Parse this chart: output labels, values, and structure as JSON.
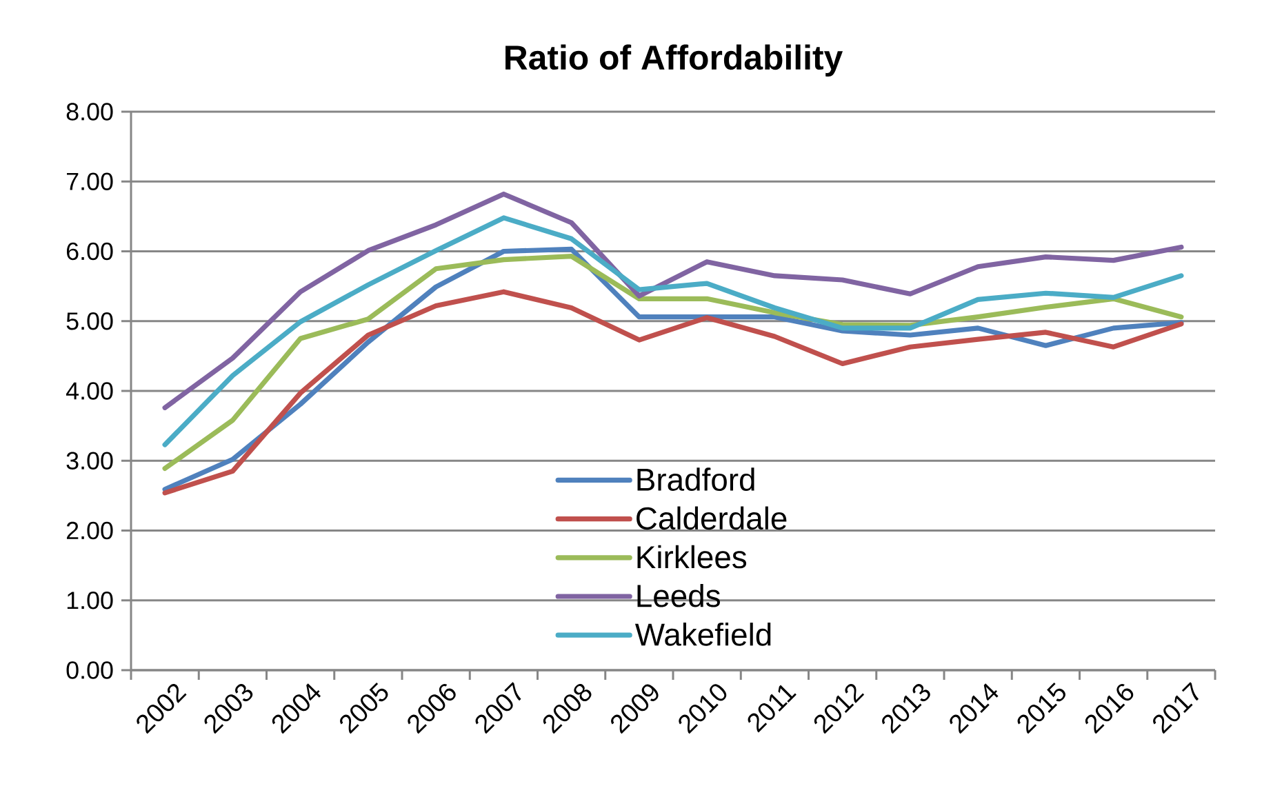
{
  "chart_data": {
    "type": "line",
    "title": "Ratio of Affordability",
    "categories": [
      "2002",
      "2003",
      "2004",
      "2005",
      "2006",
      "2007",
      "2008",
      "2009",
      "2010",
      "2011",
      "2012",
      "2013",
      "2014",
      "2015",
      "2016",
      "2017"
    ],
    "series": [
      {
        "name": "Bradford",
        "color": "#4f81bd",
        "values": [
          2.59,
          3.02,
          3.81,
          4.7,
          5.49,
          6.0,
          6.03,
          5.06,
          5.06,
          5.06,
          4.86,
          4.8,
          4.9,
          4.65,
          4.9,
          4.98
        ]
      },
      {
        "name": "Calderdale",
        "color": "#c0504d",
        "values": [
          2.54,
          2.85,
          3.97,
          4.8,
          5.22,
          5.42,
          5.19,
          4.73,
          5.05,
          4.78,
          4.39,
          4.63,
          4.74,
          4.84,
          4.63,
          4.96
        ]
      },
      {
        "name": "Kirklees",
        "color": "#9bbb59",
        "values": [
          2.89,
          3.58,
          4.75,
          5.03,
          5.75,
          5.88,
          5.93,
          5.32,
          5.32,
          5.12,
          4.95,
          4.94,
          5.06,
          5.2,
          5.32,
          5.06
        ]
      },
      {
        "name": "Leeds",
        "color": "#8064a2",
        "values": [
          3.76,
          4.47,
          5.42,
          6.01,
          6.38,
          6.82,
          6.41,
          5.36,
          5.85,
          5.65,
          5.59,
          5.39,
          5.78,
          5.92,
          5.87,
          6.06
        ]
      },
      {
        "name": "Wakefield",
        "color": "#4bacc6",
        "values": [
          3.23,
          4.22,
          4.99,
          5.52,
          6.01,
          6.48,
          6.18,
          5.45,
          5.54,
          5.19,
          4.9,
          4.9,
          5.31,
          5.4,
          5.34,
          5.65
        ]
      }
    ],
    "ylim": [
      0,
      8
    ],
    "yticks": [
      {
        "value": 0,
        "label": "0.00"
      },
      {
        "value": 1,
        "label": "1.00"
      },
      {
        "value": 2,
        "label": "2.00"
      },
      {
        "value": 3,
        "label": "3.00"
      },
      {
        "value": 4,
        "label": "4.00"
      },
      {
        "value": 5,
        "label": "5.00"
      },
      {
        "value": 6,
        "label": "6.00"
      },
      {
        "value": 7,
        "label": "7.00"
      },
      {
        "value": 8,
        "label": "8.00"
      }
    ],
    "grid": "y",
    "legend": "bottom",
    "marker": "none",
    "line_style": "solid"
  }
}
